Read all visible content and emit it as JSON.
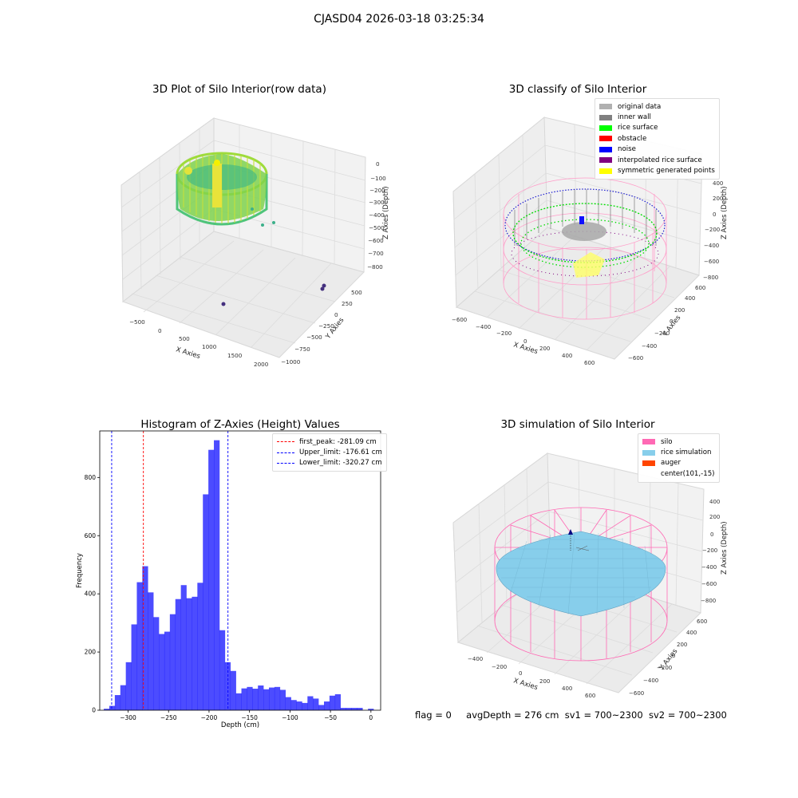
{
  "figure": {
    "suptitle": "CJASD04 2026-03-18 03:25:34",
    "status_line": {
      "flag": "flag = 0",
      "avg_depth": "avgDepth = 276 cm",
      "sv1": "sv1 = 700~2300",
      "sv2": "sv2 = 700~2300"
    }
  },
  "panels": {
    "raw": {
      "title": "3D Plot of Silo Interior(row data)",
      "xlabel": "X Axies",
      "ylabel": "Y Axies",
      "zlabel": "Z Axies (Depth)",
      "x_ticks": [
        "−500",
        "0",
        "500",
        "1000",
        "1500",
        "2000"
      ],
      "y_ticks": [
        "−1000",
        "−750",
        "−500",
        "−250",
        "0",
        "250",
        "500"
      ],
      "z_ticks": [
        "0",
        "−100",
        "−200",
        "−300",
        "−400",
        "−500",
        "−600",
        "−700",
        "−800"
      ]
    },
    "classify": {
      "title": "3D classify of Silo Interior",
      "xlabel": "X Axies",
      "ylabel": "Y Axies",
      "zlabel": "Z Axies (Depth)",
      "x_ticks": [
        "−600",
        "−400",
        "−200",
        "0",
        "200",
        "400",
        "600"
      ],
      "y_ticks": [
        "−600",
        "−400",
        "−200",
        "0",
        "200",
        "400",
        "600"
      ],
      "z_ticks": [
        "400",
        "200",
        "0",
        "−200",
        "−400",
        "−600",
        "−800"
      ],
      "legend": [
        {
          "label": "original data",
          "color": "#b0b0b0"
        },
        {
          "label": "inner wall",
          "color": "#808080"
        },
        {
          "label": "rice surface",
          "color": "#00ff00"
        },
        {
          "label": "obstacle",
          "color": "#ff0000"
        },
        {
          "label": "noise",
          "color": "#0000ff"
        },
        {
          "label": "interpolated rice surface",
          "color": "#800080"
        },
        {
          "label": "symmetric generated points",
          "color": "#ffff00"
        }
      ]
    },
    "simulation": {
      "title": "3D simulation of Silo Interior",
      "xlabel": "X Axies",
      "ylabel": "Y Axies",
      "zlabel": "Z Axies (Depth)",
      "x_ticks": [
        "−400",
        "−200",
        "0",
        "200",
        "400",
        "600"
      ],
      "y_ticks": [
        "−600",
        "−400",
        "−200",
        "0",
        "200",
        "400",
        "600"
      ],
      "z_ticks": [
        "400",
        "200",
        "0",
        "−200",
        "−400",
        "−600",
        "−800"
      ],
      "legend": [
        {
          "label": "silo",
          "color": "#ff69b4"
        },
        {
          "label": "rice simulation",
          "color": "#87ceeb"
        },
        {
          "label": "auger",
          "color": "#ff4500"
        },
        {
          "label": "center(101,-15)",
          "color": ""
        }
      ]
    }
  },
  "chart_data": [
    {
      "type": "bar",
      "title": "Histogram of Z-Axies (Height) Values",
      "xlabel": "Depth (cm)",
      "ylabel": "Frequency",
      "xlim": [
        -335,
        12
      ],
      "ylim": [
        0,
        960
      ],
      "x_ticks": [
        -300,
        -250,
        -200,
        -150,
        -100,
        -50,
        0
      ],
      "y_ticks": [
        0,
        200,
        400,
        600,
        800
      ],
      "bar_color": "#0000ff",
      "bin_width": 6.8,
      "bin_starts": [
        -330,
        -323.2,
        -316.4,
        -309.6,
        -302.8,
        -296,
        -289.2,
        -282.4,
        -275.6,
        -268.8,
        -262,
        -255.2,
        -248.4,
        -241.6,
        -234.8,
        -228,
        -221.2,
        -214.4,
        -207.6,
        -200.8,
        -194,
        -187.2,
        -180.4,
        -173.6,
        -166.8,
        -160,
        -153.2,
        -146.4,
        -139.6,
        -132.8,
        -126,
        -119.2,
        -112.4,
        -105.6,
        -98.8,
        -92,
        -85.2,
        -78.4,
        -71.6,
        -64.8,
        -58,
        -51.2,
        -44.4,
        -37.6,
        -30.8,
        -24,
        -17.2,
        -10.4,
        -3.6
      ],
      "values": [
        5,
        15,
        52,
        86,
        165,
        295,
        440,
        495,
        405,
        320,
        262,
        270,
        330,
        382,
        430,
        385,
        390,
        438,
        742,
        895,
        928,
        275,
        165,
        135,
        58,
        75,
        80,
        74,
        85,
        72,
        78,
        80,
        70,
        45,
        35,
        30,
        25,
        48,
        40,
        18,
        30,
        50,
        55,
        8,
        8,
        8,
        8,
        0,
        5
      ],
      "reference_lines": [
        {
          "label": "first_peak: -281.09 cm",
          "x": -281.09,
          "color": "#ff0000"
        },
        {
          "label": "Upper_limit: -176.61 cm",
          "x": -176.61,
          "color": "#0000ff"
        },
        {
          "label": "Lower_limit: -320.27 cm",
          "x": -320.27,
          "color": "#0000ff"
        }
      ]
    }
  ]
}
